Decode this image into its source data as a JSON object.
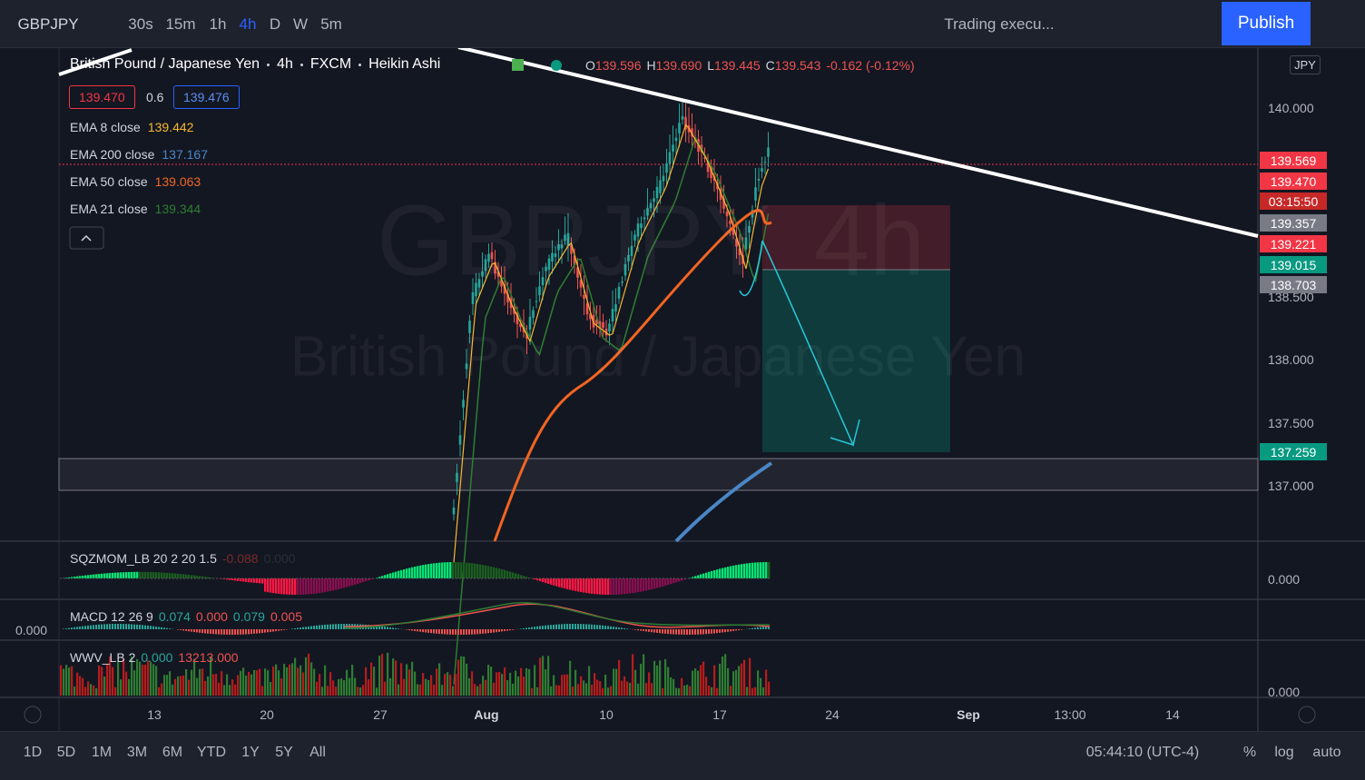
{
  "toolbar": {
    "symbol": "GBPJPY",
    "intervals": [
      "30s",
      "15m",
      "1h",
      "4h",
      "D",
      "W",
      "5m"
    ],
    "active_interval": "4h",
    "layout_name": "Trading execu...",
    "publish": "Publish"
  },
  "legend": {
    "title": "British Pound / Japanese Yen",
    "interval": "4h",
    "exchange": "FXCM",
    "style": "Heikin Ashi",
    "ohlc": [
      {
        "key": "O",
        "value": "139.596"
      },
      {
        "key": "H",
        "value": "139.690"
      },
      {
        "key": "L",
        "value": "139.445"
      },
      {
        "key": "C",
        "value": "139.543"
      }
    ],
    "change": "-0.162 (-0.12%)",
    "bid": "139.470",
    "spread": "0.6",
    "ask": "139.476",
    "indicators": [
      {
        "name": "EMA 8 close",
        "value": "139.442",
        "color": "#f7b731"
      },
      {
        "name": "EMA 200 close",
        "value": "137.167",
        "color": "#4a86c5"
      },
      {
        "name": "EMA 50 close",
        "value": "139.063",
        "color": "#f26522"
      },
      {
        "name": "EMA 21 close",
        "value": "139.344",
        "color": "#2e7d32"
      }
    ]
  },
  "watermark": {
    "symbol": "GBPJPY",
    "interval": "4h",
    "description": "British Pound / Japanese Yen"
  },
  "currency": "JPY",
  "price_axis": [
    "140.000",
    "138.500",
    "138.000",
    "137.500",
    "137.000"
  ],
  "price_tags": [
    {
      "label": "139.569",
      "color": "#f23645"
    },
    {
      "label": "139.470",
      "color": "#f23645"
    },
    {
      "label": "03:15:50",
      "color": "#c62828"
    },
    {
      "label": "139.357",
      "color": "#787b86"
    },
    {
      "label": "139.221",
      "color": "#f23645"
    },
    {
      "label": "139.015",
      "color": "#089981"
    },
    {
      "label": "138.703",
      "color": "#787b86"
    },
    {
      "label": "137.259",
      "color": "#089981"
    }
  ],
  "panes": [
    {
      "name": "SQZMOM_LB 20 2 20 1.5",
      "values": [
        {
          "text": "-0.088",
          "color": "#7a2a2a"
        },
        {
          "text": "0.000",
          "color": "#2a2e39"
        }
      ],
      "axis": "0.000"
    },
    {
      "name": "MACD 12 26 9",
      "values": [
        {
          "text": "0.074",
          "color": "#26a69a"
        },
        {
          "text": "0.000",
          "color": "#ef5350"
        },
        {
          "text": "0.079",
          "color": "#26a69a"
        },
        {
          "text": "0.005",
          "color": "#ef5350"
        }
      ],
      "axis": "0.000"
    },
    {
      "name": "WWV_LB 2",
      "values": [
        {
          "text": "0.000",
          "color": "#26a69a"
        },
        {
          "text": "13213.000",
          "color": "#ef5350"
        }
      ],
      "axis": "0.000"
    }
  ],
  "time_axis": [
    "13",
    "20",
    "27",
    "Aug",
    "10",
    "17",
    "24",
    "Sep",
    "13:00",
    "14"
  ],
  "ranges": [
    "1D",
    "5D",
    "1M",
    "3M",
    "6M",
    "YTD",
    "1Y",
    "5Y",
    "All"
  ],
  "clock": "05:44:10 (UTC-4)",
  "scale_buttons": [
    "%",
    "log",
    "auto"
  ]
}
